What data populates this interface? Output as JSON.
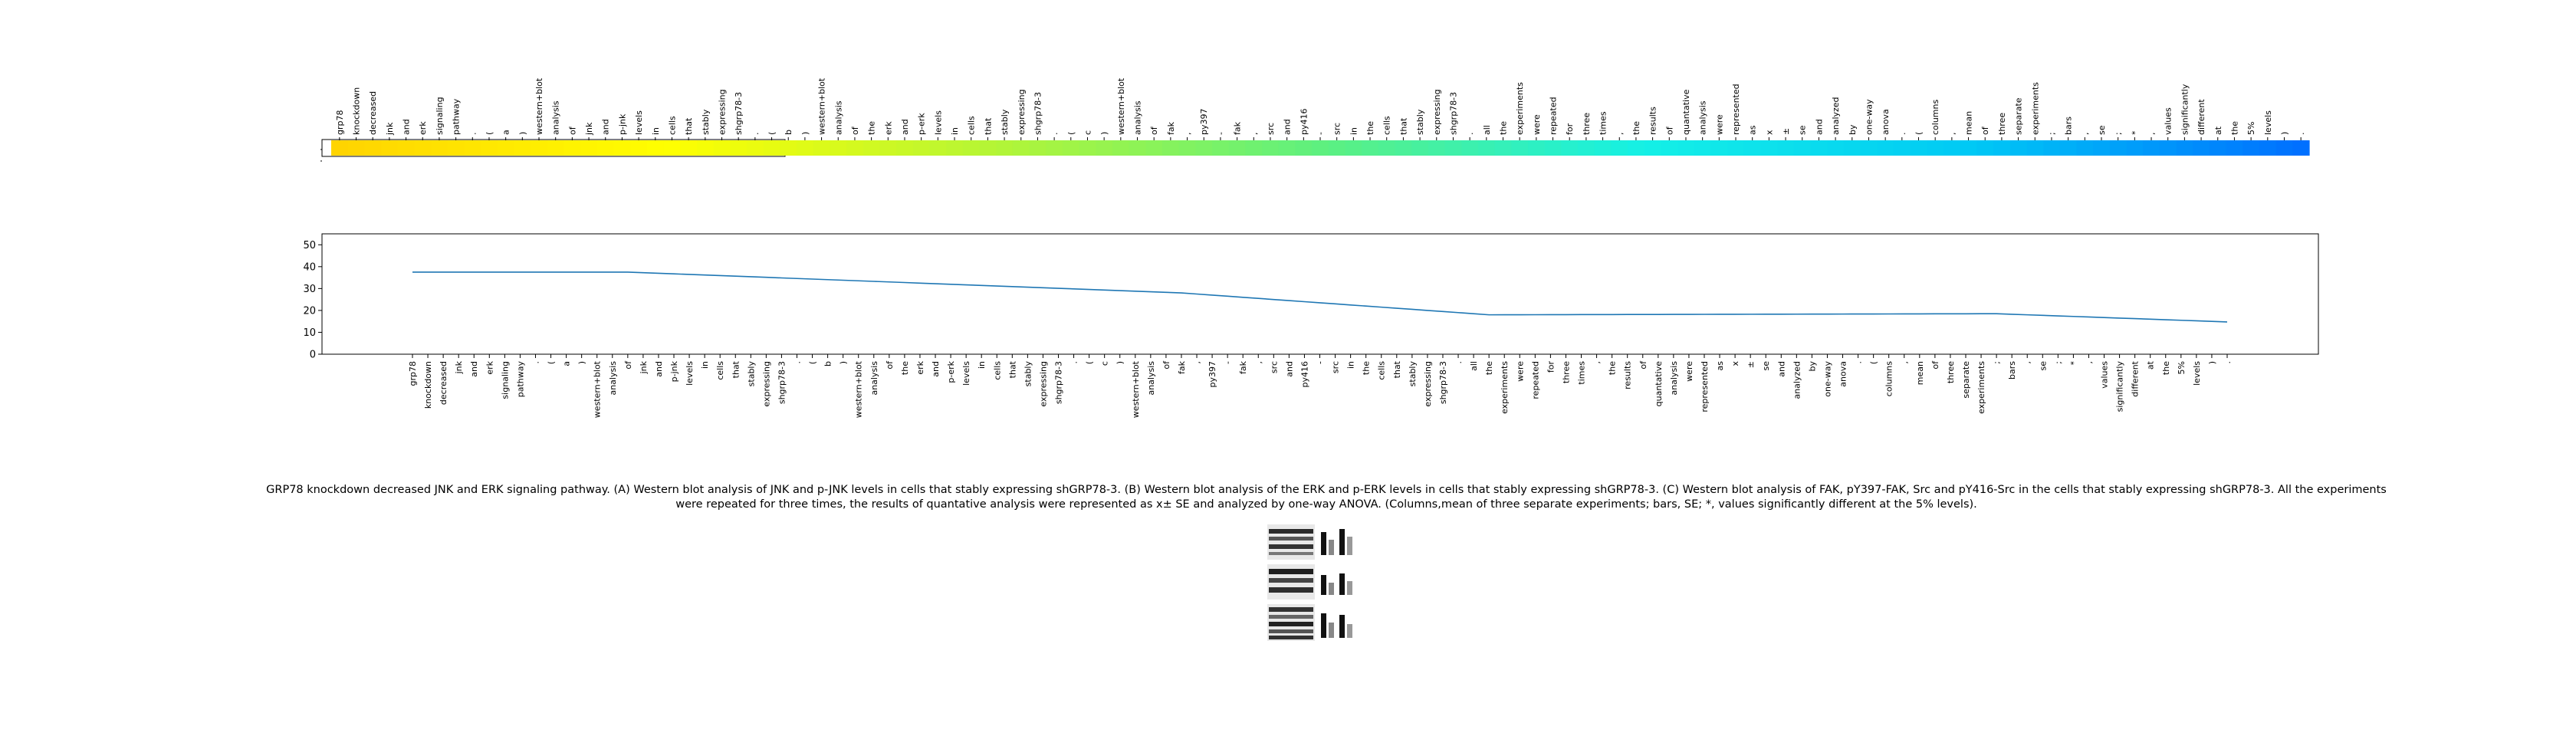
{
  "chart_data": [
    {
      "type": "heatmap",
      "title": "",
      "xlabel": "",
      "ylabel": "",
      "categories": [
        "grp78",
        "knockdown",
        "decreased",
        "jnk",
        "and",
        "erk",
        "signaling",
        "pathway",
        ".",
        "(",
        "a",
        ")",
        "western+blot",
        "analysis",
        "of",
        "jnk",
        "and",
        "p-jnk",
        "levels",
        "in",
        "cells",
        "that",
        "stably",
        "expressing",
        "shgrp78-3",
        ".",
        "(",
        "b",
        ")",
        "western+blot",
        "analysis",
        "of",
        "the",
        "erk",
        "and",
        "p-erk",
        "levels",
        "in",
        "cells",
        "that",
        "stably",
        "expressing",
        "shgrp78-3",
        ".",
        "(",
        "c",
        ")",
        "western+blot",
        "analysis",
        "of",
        "fak",
        ",",
        "py397",
        "-",
        "fak",
        ",",
        "src",
        "and",
        "py416",
        "-",
        "src",
        "in",
        "the",
        "cells",
        "that",
        "stably",
        "expressing",
        "shgrp78-3",
        ".",
        "all",
        "the",
        "experiments",
        "were",
        "repeated",
        "for",
        "three",
        "times",
        ",",
        "the",
        "results",
        "of",
        "quantative",
        "analysis",
        "were",
        "represented",
        "as",
        "x",
        "±",
        "se",
        "and",
        "analyzed",
        "by",
        "one-way",
        "anova",
        ".",
        "(",
        "columns",
        ",",
        "mean",
        "of",
        "three",
        "separate",
        "experiments",
        ";",
        "bars",
        ",",
        "se",
        ";",
        "*",
        ",",
        "values",
        "significantly",
        "different",
        "at",
        "the",
        "5%",
        "levels",
        ")",
        "."
      ],
      "colormap": "wistia-to-blue",
      "colors": [
        "#ffd400",
        "#ffff00",
        "#b4f536",
        "#5ef07f",
        "#14f0e6",
        "#00c8f5",
        "#0070ff"
      ]
    },
    {
      "type": "line",
      "title": "",
      "xlabel": "",
      "ylabel": "",
      "ylim": [
        0,
        55
      ],
      "yticks": [
        0,
        10,
        20,
        30,
        40,
        50
      ],
      "grid": false,
      "line_color": "#1f77b4",
      "categories": [
        "grp78",
        "knockdown",
        "decreased",
        "jnk",
        "and",
        "erk",
        "signaling",
        "pathway",
        ".",
        "(",
        "a",
        ")",
        "western+blot",
        "analysis",
        "of",
        "jnk",
        "and",
        "p-jnk",
        "levels",
        "in",
        "cells",
        "that",
        "stably",
        "expressing",
        "shgrp78-3",
        ".",
        "(",
        "b",
        ")",
        "western+blot",
        "analysis",
        "of",
        "the",
        "erk",
        "and",
        "p-erk",
        "levels",
        "in",
        "cells",
        "that",
        "stably",
        "expressing",
        "shgrp78-3",
        ".",
        "(",
        "c",
        ")",
        "western+blot",
        "analysis",
        "of",
        "fak",
        ",",
        "py397",
        "-",
        "fak",
        ",",
        "src",
        "and",
        "py416",
        "-",
        "src",
        "in",
        "the",
        "cells",
        "that",
        "stably",
        "expressing",
        "shgrp78-3",
        ".",
        "all",
        "the",
        "experiments",
        "were",
        "repeated",
        "for",
        "three",
        "times",
        ",",
        "the",
        "results",
        "of",
        "quantative",
        "analysis",
        "were",
        "represented",
        "as",
        "x",
        "±",
        "se",
        "and",
        "analyzed",
        "by",
        "one-way",
        "anova",
        ".",
        "(",
        "columns",
        ",",
        "mean",
        "of",
        "three",
        "separate",
        "experiments",
        ";",
        "bars",
        ",",
        "se",
        ";",
        "*",
        ",",
        "values",
        "significantly",
        "different",
        "at",
        "the",
        "5%",
        "levels",
        ")",
        "."
      ],
      "anchors": [
        [
          0,
          37.5
        ],
        [
          14,
          37.5
        ],
        [
          50,
          28
        ],
        [
          70,
          18
        ],
        [
          103,
          18.5
        ],
        [
          121,
          14
        ]
      ]
    }
  ],
  "caption": "GRP78 knockdown decreased JNK and ERK signaling pathway. (A) Western blot analysis of JNK and p-JNK levels in cells that stably expressing shGRP78-3. (B) Western blot analysis of the ERK and p-ERK levels in cells that stably expressing shGRP78-3. (C) Western blot analysis of FAK, pY397-FAK, Src and pY416-Src in the cells that stably expressing shGRP78-3. All the experiments were repeated for three times, the results of quantative analysis were represented as x± SE and analyzed by one-way ANOVA. (Columns,mean of three separate experiments; bars, SE; *, values significantly different at the 5% levels).",
  "figure_thumbnail": {
    "panels": [
      "A",
      "B",
      "C"
    ]
  }
}
